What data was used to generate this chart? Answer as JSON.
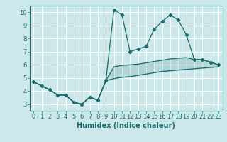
{
  "xlabel": "Humidex (Indice chaleur)",
  "xlim": [
    -0.5,
    23.5
  ],
  "ylim": [
    2.5,
    10.5
  ],
  "xticks": [
    0,
    1,
    2,
    3,
    4,
    5,
    6,
    7,
    8,
    9,
    10,
    11,
    12,
    13,
    14,
    15,
    16,
    17,
    18,
    19,
    20,
    21,
    22,
    23
  ],
  "yticks": [
    3,
    4,
    5,
    6,
    7,
    8,
    9,
    10
  ],
  "bg_color": "#cce8ea",
  "grid_color": "#ffffff",
  "line_color": "#1a6b6b",
  "line1_x": [
    0,
    1,
    2,
    3,
    4,
    5,
    6,
    7,
    8,
    9,
    10,
    11,
    12,
    13,
    14,
    15,
    16,
    17,
    18,
    19,
    20,
    21,
    22,
    23
  ],
  "line1_y": [
    4.7,
    4.4,
    4.1,
    3.7,
    3.7,
    3.15,
    3.0,
    3.55,
    3.3,
    4.8,
    10.2,
    9.8,
    7.0,
    7.2,
    7.4,
    8.7,
    9.3,
    9.8,
    9.4,
    8.3,
    6.4,
    6.4,
    6.2,
    6.0
  ],
  "line2_x": [
    0,
    1,
    2,
    3,
    4,
    5,
    6,
    7,
    8,
    9,
    10,
    11,
    12,
    13,
    14,
    15,
    16,
    17,
    18,
    19,
    20,
    21,
    22,
    23
  ],
  "line2_y": [
    4.7,
    4.4,
    4.1,
    3.7,
    3.7,
    3.15,
    3.0,
    3.55,
    3.3,
    4.8,
    5.85,
    5.95,
    6.0,
    6.05,
    6.15,
    6.25,
    6.35,
    6.45,
    6.5,
    6.55,
    6.4,
    6.4,
    6.2,
    6.0
  ],
  "line3_x": [
    0,
    1,
    2,
    3,
    4,
    5,
    6,
    7,
    8,
    9,
    10,
    11,
    12,
    13,
    14,
    15,
    16,
    17,
    18,
    19,
    20,
    21,
    22,
    23
  ],
  "line3_y": [
    4.7,
    4.4,
    4.1,
    3.7,
    3.7,
    3.15,
    3.0,
    3.55,
    3.3,
    4.8,
    4.95,
    5.05,
    5.1,
    5.2,
    5.3,
    5.4,
    5.5,
    5.55,
    5.6,
    5.65,
    5.7,
    5.75,
    5.8,
    5.85
  ],
  "tick_fontsize": 6,
  "xlabel_fontsize": 7
}
